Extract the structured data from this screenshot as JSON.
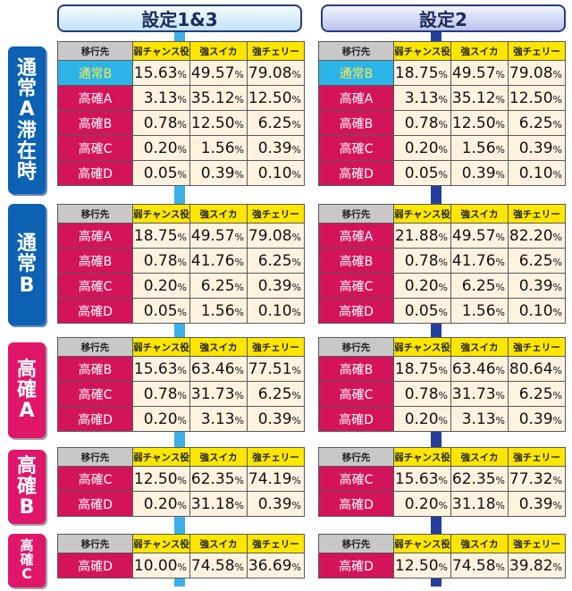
{
  "headers": [
    "設定1&3",
    "設定2"
  ],
  "columns": [
    "移行先",
    "弱チャンス役",
    "強スイカ",
    "強チェリー"
  ],
  "sections": [
    {
      "label": "通常A滞在時",
      "color": "#0d61b2",
      "rows": [
        {
          "dest": "通常B",
          "s13": [
            "15.63",
            "49.57",
            "79.08"
          ],
          "s2": [
            "18.75",
            "49.57",
            "79.08"
          ]
        },
        {
          "dest": "高確A",
          "s13": [
            "3.13",
            "35.12",
            "12.50"
          ],
          "s2": [
            "3.13",
            "35.12",
            "12.50"
          ]
        },
        {
          "dest": "高確B",
          "s13": [
            "0.78",
            "12.50",
            "6.25"
          ],
          "s2": [
            "0.78",
            "12.50",
            "6.25"
          ]
        },
        {
          "dest": "高確C",
          "s13": [
            "0.20",
            "1.56",
            "0.39"
          ],
          "s2": [
            "0.20",
            "1.56",
            "0.39"
          ]
        },
        {
          "dest": "高確D",
          "s13": [
            "0.05",
            "0.39",
            "0.10"
          ],
          "s2": [
            "0.05",
            "0.39",
            "0.10"
          ]
        }
      ]
    },
    {
      "label": "通常B",
      "color": "#0d61b2",
      "rows": [
        {
          "dest": "高確A",
          "s13": [
            "18.75",
            "49.57",
            "79.08"
          ],
          "s2": [
            "21.88",
            "49.57",
            "82.20"
          ]
        },
        {
          "dest": "高確B",
          "s13": [
            "0.78",
            "41.76",
            "6.25"
          ],
          "s2": [
            "0.78",
            "41.76",
            "6.25"
          ]
        },
        {
          "dest": "高確C",
          "s13": [
            "0.20",
            "6.25",
            "0.39"
          ],
          "s2": [
            "0.20",
            "6.25",
            "0.39"
          ]
        },
        {
          "dest": "高確D",
          "s13": [
            "0.05",
            "1.56",
            "0.10"
          ],
          "s2": [
            "0.05",
            "1.56",
            "0.10"
          ]
        }
      ]
    },
    {
      "label": "高確A",
      "color": "#e0166b",
      "rows": [
        {
          "dest": "高確B",
          "s13": [
            "15.63",
            "63.46",
            "77.51"
          ],
          "s2": [
            "18.75",
            "63.46",
            "80.64"
          ]
        },
        {
          "dest": "高確C",
          "s13": [
            "0.78",
            "31.73",
            "6.25"
          ],
          "s2": [
            "0.78",
            "31.73",
            "6.25"
          ]
        },
        {
          "dest": "高確D",
          "s13": [
            "0.20",
            "3.13",
            "0.39"
          ],
          "s2": [
            "0.20",
            "3.13",
            "0.39"
          ]
        }
      ]
    },
    {
      "label": "高確B",
      "color": "#e0166b",
      "rows": [
        {
          "dest": "高確C",
          "s13": [
            "12.50",
            "62.35",
            "74.19"
          ],
          "s2": [
            "15.63",
            "62.35",
            "77.32"
          ]
        },
        {
          "dest": "高確D",
          "s13": [
            "0.20",
            "31.18",
            "0.39"
          ],
          "s2": [
            "0.20",
            "31.18",
            "0.39"
          ]
        }
      ]
    },
    {
      "label": "高確C",
      "color": "#e0166b",
      "rows": [
        {
          "dest": "高確D",
          "s13": [
            "10.00",
            "74.58",
            "36.69"
          ],
          "s2": [
            "12.50",
            "74.58",
            "39.82"
          ]
        }
      ]
    }
  ]
}
